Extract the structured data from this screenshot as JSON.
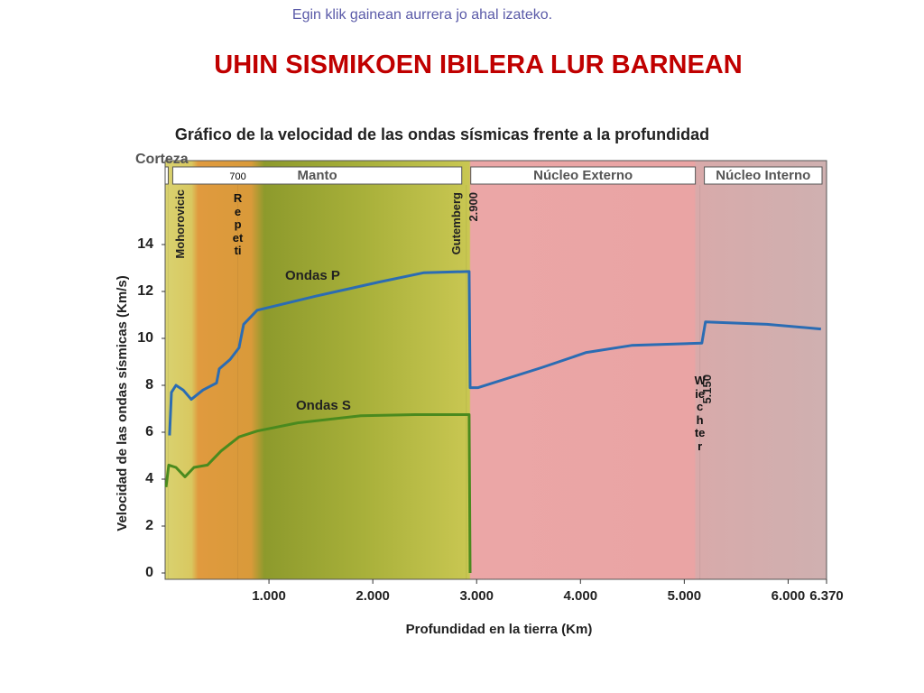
{
  "slide": {
    "hint": "Egin klik gainean aurrera jo ahal izateko.",
    "title": "UHIN SISMIKOEN IBILERA LUR BARNEAN"
  },
  "chart_data": {
    "type": "line",
    "title": "Gráfico de la velocidad de las ondas sísmicas frente a la profundidad",
    "xlabel": "Profundidad en la tierra (Km)",
    "ylabel": "Velocidad de las ondas sísmicas (Km/s)",
    "xlim": [
      0,
      6370
    ],
    "ylim": [
      0,
      17.5
    ],
    "xticks": [
      {
        "value": 1000,
        "label": "1.000"
      },
      {
        "value": 2000,
        "label": "2.000"
      },
      {
        "value": 3000,
        "label": "3.000"
      },
      {
        "value": 4000,
        "label": "4.000"
      },
      {
        "value": 5000,
        "label": "5.000"
      },
      {
        "value": 6000,
        "label": "6.000"
      },
      {
        "value": 6370,
        "label": "6.370"
      }
    ],
    "yticks": [
      0,
      2,
      4,
      6,
      8,
      10,
      12,
      14
    ],
    "layers": [
      {
        "name": "Corteza",
        "from": 0,
        "to": 30
      },
      {
        "name": "Manto",
        "from": 30,
        "to": 2900
      },
      {
        "name": "Núcleo Externo",
        "from": 2900,
        "to": 5150
      },
      {
        "name": "Núcleo Interno",
        "from": 5150,
        "to": 6370
      }
    ],
    "boundaries": [
      {
        "name": "Mohorovicic",
        "depth": 30,
        "orientation": "rotated"
      },
      {
        "name": "Repetti",
        "depth": 700,
        "label": "700",
        "orientation": "stacked"
      },
      {
        "name": "Gutemberg",
        "depth": 2900,
        "label": "2.900",
        "orientation": "rotated"
      },
      {
        "name": "Wiechter",
        "depth": 5150,
        "label": "5.150",
        "orientation": "stacked"
      }
    ],
    "series": [
      {
        "name": "Ondas P",
        "color": "#2b6cb3",
        "x": [
          43,
          61,
          104,
          174,
          252,
          365,
          495,
          521,
          626,
          712,
          756,
          886,
          1451,
          2059,
          2493,
          2928,
          2937,
          3015,
          3623,
          4057,
          4492,
          5169,
          5204,
          5795,
          6316
        ],
        "values": [
          5.86,
          7.7,
          8.0,
          7.8,
          7.4,
          7.8,
          8.1,
          8.7,
          9.1,
          9.6,
          10.6,
          11.2,
          11.8,
          12.4,
          12.8,
          12.85,
          7.9,
          7.9,
          8.75,
          9.4,
          9.7,
          9.8,
          10.7,
          10.6,
          10.4
        ]
      },
      {
        "name": "Ondas S",
        "color": "#4a8a1e",
        "x": [
          9,
          35,
          104,
          191,
          278,
          408,
          539,
          712,
          886,
          1277,
          1885,
          2407,
          2928,
          2937
        ],
        "values": [
          3.66,
          4.6,
          4.5,
          4.1,
          4.5,
          4.6,
          5.2,
          5.8,
          6.05,
          6.4,
          6.7,
          6.75,
          6.75,
          0
        ]
      }
    ]
  }
}
